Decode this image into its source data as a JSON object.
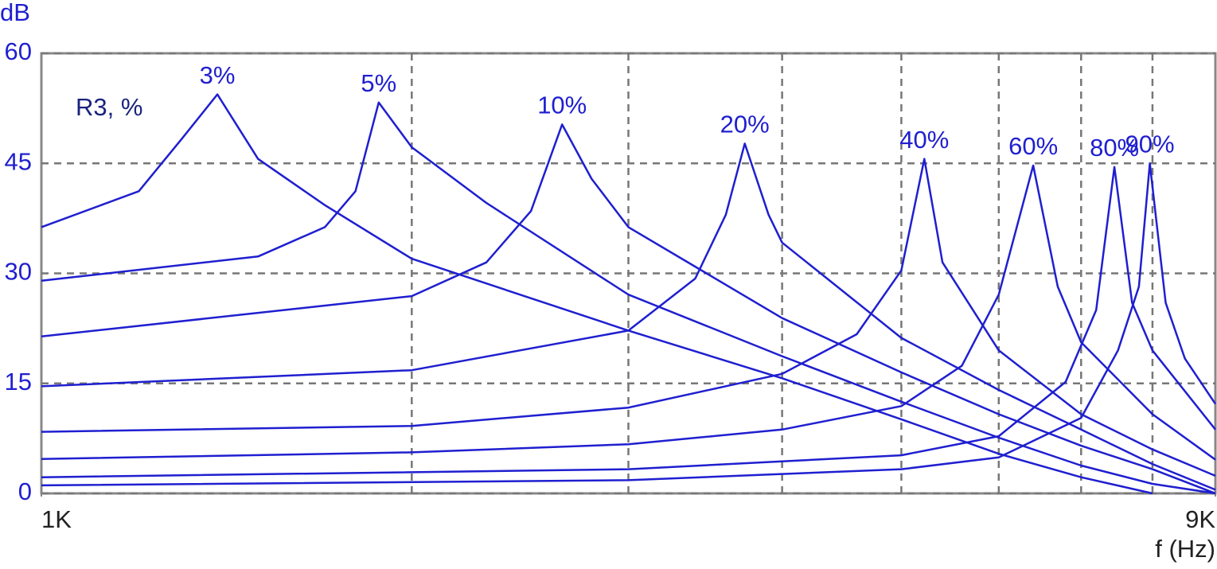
{
  "chart_data": {
    "type": "line",
    "y_label": "dB",
    "x_label": "f (Hz)",
    "annotation": "R3, %",
    "xscale": "log",
    "xlim": [
      1000,
      9000
    ],
    "xticks": [
      {
        "value": 1000,
        "label": "1K"
      },
      {
        "value": 9000,
        "label": "9K"
      }
    ],
    "xgrid": [
      2000,
      3000,
      4000,
      5000,
      6000,
      7000,
      8000
    ],
    "ylim": [
      0,
      60
    ],
    "yticks": [
      0,
      15,
      30,
      45,
      60
    ],
    "grid": true,
    "series": [
      {
        "name": "3%",
        "color": "#1f1fd0",
        "x": [
          1000,
          1200,
          1300,
          1390,
          1500,
          1700,
          2000,
          3000,
          4000,
          5000,
          6000,
          7000,
          8000
        ],
        "values": [
          36.3,
          41.2,
          48.3,
          54.4,
          45.6,
          39.3,
          32.0,
          22.2,
          15.7,
          10.1,
          5.4,
          2.2,
          0
        ]
      },
      {
        "name": "5%",
        "color": "#1f1fd0",
        "x": [
          1000,
          1500,
          1700,
          1800,
          1880,
          2000,
          2300,
          3000,
          4000,
          5000,
          6000,
          7000,
          8000,
          9000
        ],
        "values": [
          29.0,
          32.3,
          36.3,
          41.2,
          53.3,
          47.2,
          39.6,
          27.1,
          18.7,
          12.5,
          7.6,
          3.8,
          1.3,
          0
        ]
      },
      {
        "name": "10%",
        "color": "#1f1fd0",
        "x": [
          1000,
          2000,
          2300,
          2500,
          2650,
          2800,
          3000,
          4000,
          5000,
          6000,
          7000,
          8000,
          9000
        ],
        "values": [
          21.4,
          26.9,
          31.5,
          38.5,
          50.3,
          42.9,
          36.3,
          23.9,
          16.5,
          10.8,
          6.5,
          3.3,
          0
        ]
      },
      {
        "name": "20%",
        "color": "#1f1fd0",
        "x": [
          1000,
          2000,
          3000,
          3400,
          3600,
          3730,
          3900,
          4000,
          5000,
          6000,
          7000,
          8000,
          9000
        ],
        "values": [
          14.6,
          16.8,
          22.2,
          29.3,
          38.0,
          47.7,
          38.0,
          34.2,
          21.2,
          14.1,
          8.7,
          4.0,
          0.5
        ]
      },
      {
        "name": "40%",
        "color": "#1f1fd0",
        "x": [
          1000,
          2000,
          3000,
          4000,
          4600,
          5000,
          5220,
          5400,
          6000,
          7000,
          8000,
          9000
        ],
        "values": [
          8.4,
          9.2,
          11.7,
          16.3,
          21.7,
          30.4,
          45.6,
          31.5,
          19.5,
          10.8,
          6.0,
          2.4
        ]
      },
      {
        "name": "60%",
        "color": "#1f1fd0",
        "x": [
          1000,
          2000,
          3000,
          4000,
          5000,
          5600,
          6000,
          6400,
          6700,
          7000,
          8000,
          9000
        ],
        "values": [
          4.7,
          5.6,
          6.7,
          8.7,
          11.9,
          17.4,
          27.1,
          44.7,
          28.2,
          20.6,
          10.8,
          4.6
        ]
      },
      {
        "name": "80%",
        "color": "#1f1fd0",
        "x": [
          1000,
          3000,
          5000,
          6000,
          6800,
          7200,
          7450,
          7700,
          8000,
          9000
        ],
        "values": [
          2.2,
          3.3,
          5.2,
          7.8,
          15.2,
          25.0,
          44.5,
          26.0,
          19.5,
          8.7
        ]
      },
      {
        "name": "90%",
        "color": "#1f1fd0",
        "x": [
          1000,
          3000,
          5000,
          6000,
          7000,
          7500,
          7800,
          7960,
          8200,
          8500,
          9000
        ],
        "values": [
          1.1,
          1.8,
          3.3,
          4.9,
          10.3,
          19.5,
          28.2,
          45.0,
          26.0,
          18.4,
          12.2
        ]
      }
    ]
  }
}
